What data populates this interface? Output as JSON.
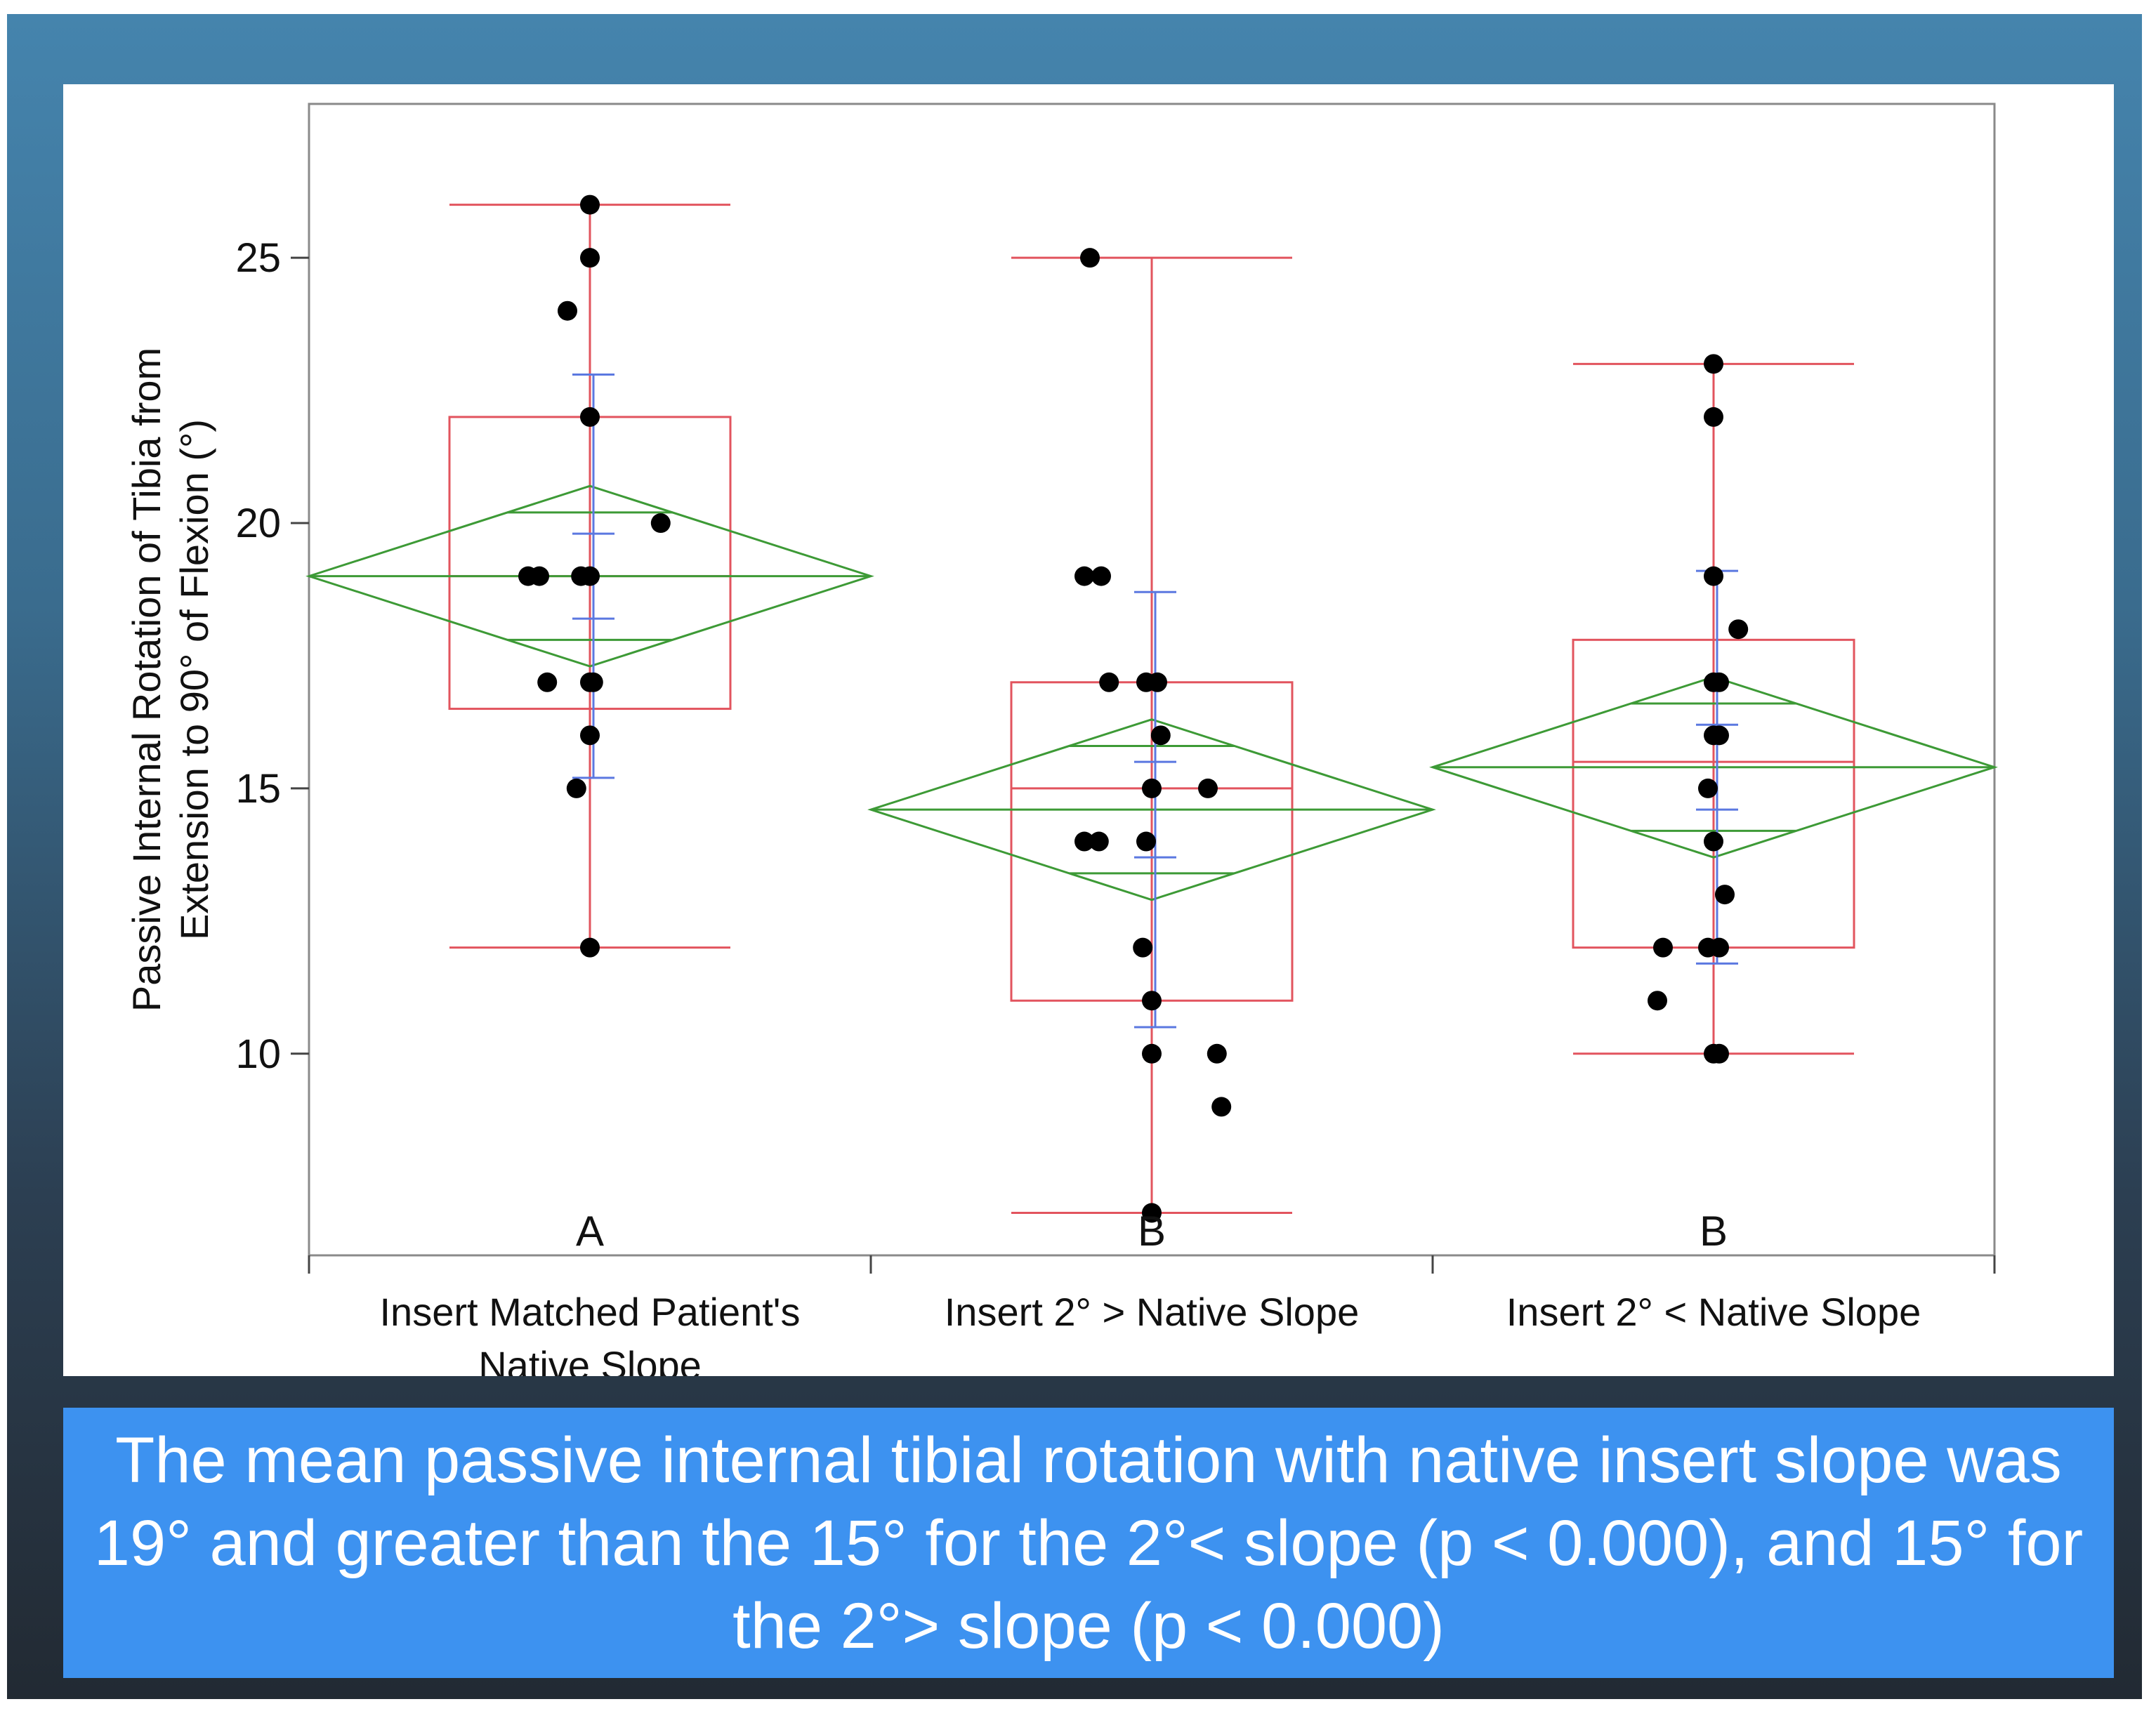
{
  "chart_data": {
    "type": "box",
    "ylabel_lines": [
      "Passive Internal Rotation of Tibia from",
      "Extension to 90° of Flexion (°)"
    ],
    "ylim": [
      6.2,
      27.9
    ],
    "yticks": [
      10,
      15,
      20,
      25
    ],
    "categories": [
      {
        "label_lines": [
          "Insert Matched Patient's",
          "Native Slope"
        ],
        "letter": "A",
        "whisker": [
          12,
          26
        ],
        "box": [
          16.5,
          22
        ],
        "median": 19,
        "mean": 19,
        "ci": [
          17.3,
          20.7
        ],
        "overlap_marks": [
          17.8,
          20.2
        ],
        "std_err": [
          18.2,
          19.8
        ],
        "std_dev": [
          15.2,
          22.8
        ],
        "points": [
          {
            "dx": 0,
            "y": 26
          },
          {
            "dx": 0,
            "y": 25
          },
          {
            "dx": -0.2,
            "y": 24
          },
          {
            "dx": 0,
            "y": 22
          },
          {
            "dx": 0.63,
            "y": 20
          },
          {
            "dx": -0.55,
            "y": 19
          },
          {
            "dx": -0.45,
            "y": 19
          },
          {
            "dx": -0.08,
            "y": 19
          },
          {
            "dx": 0,
            "y": 19
          },
          {
            "dx": -0.38,
            "y": 17
          },
          {
            "dx": 0,
            "y": 17
          },
          {
            "dx": 0.03,
            "y": 17
          },
          {
            "dx": 0,
            "y": 16
          },
          {
            "dx": -0.12,
            "y": 15
          },
          {
            "dx": 0,
            "y": 12
          }
        ]
      },
      {
        "label_lines": [
          "Insert 2° > Native Slope"
        ],
        "letter": "B",
        "whisker": [
          7,
          25
        ],
        "box": [
          11,
          17
        ],
        "median": 15,
        "mean": 14.6,
        "ci": [
          12.9,
          16.3
        ],
        "overlap_marks": [
          13.4,
          15.8
        ],
        "std_err": [
          13.7,
          15.5
        ],
        "std_dev": [
          10.5,
          18.7
        ],
        "points": [
          {
            "dx": -0.55,
            "y": 25
          },
          {
            "dx": -0.6,
            "y": 19
          },
          {
            "dx": -0.45,
            "y": 19
          },
          {
            "dx": -0.38,
            "y": 17
          },
          {
            "dx": -0.05,
            "y": 17
          },
          {
            "dx": 0.05,
            "y": 17
          },
          {
            "dx": 0.08,
            "y": 16
          },
          {
            "dx": 0,
            "y": 15
          },
          {
            "dx": 0.5,
            "y": 15
          },
          {
            "dx": -0.6,
            "y": 14
          },
          {
            "dx": -0.47,
            "y": 14
          },
          {
            "dx": -0.05,
            "y": 14
          },
          {
            "dx": -0.08,
            "y": 12
          },
          {
            "dx": 0,
            "y": 11
          },
          {
            "dx": 0,
            "y": 10
          },
          {
            "dx": 0.58,
            "y": 10
          },
          {
            "dx": 0.62,
            "y": 9
          },
          {
            "dx": 0,
            "y": 7
          }
        ]
      },
      {
        "label_lines": [
          "Insert 2° < Native Slope"
        ],
        "letter": "B",
        "whisker": [
          10,
          23
        ],
        "box": [
          12,
          17.8
        ],
        "median": 15.5,
        "mean": 15.4,
        "ci": [
          13.7,
          17.1
        ],
        "overlap_marks": [
          14.2,
          16.6
        ],
        "std_err": [
          14.6,
          16.2
        ],
        "std_dev": [
          11.7,
          19.1
        ],
        "points": [
          {
            "dx": 0,
            "y": 23
          },
          {
            "dx": 0,
            "y": 22
          },
          {
            "dx": 0,
            "y": 19
          },
          {
            "dx": 0.22,
            "y": 18
          },
          {
            "dx": 0,
            "y": 17
          },
          {
            "dx": 0.05,
            "y": 17
          },
          {
            "dx": 0,
            "y": 16
          },
          {
            "dx": 0.05,
            "y": 16
          },
          {
            "dx": -0.05,
            "y": 15
          },
          {
            "dx": 0,
            "y": 14
          },
          {
            "dx": 0.1,
            "y": 13
          },
          {
            "dx": -0.45,
            "y": 12
          },
          {
            "dx": -0.05,
            "y": 12
          },
          {
            "dx": 0.05,
            "y": 12
          },
          {
            "dx": -0.5,
            "y": 11
          },
          {
            "dx": 0,
            "y": 10
          },
          {
            "dx": 0.05,
            "y": 10
          }
        ]
      }
    ]
  },
  "caption": "The mean passive internal tibial rotation with native insert slope was 19° and greater than the 15° for the 2°< slope (p < 0.000), and 15° for the 2°> slope (p < 0.000)",
  "colors": {
    "box": "#e2545e",
    "diamond": "#3d9a36",
    "error_bar": "#5b78e0",
    "points": "#000000"
  }
}
